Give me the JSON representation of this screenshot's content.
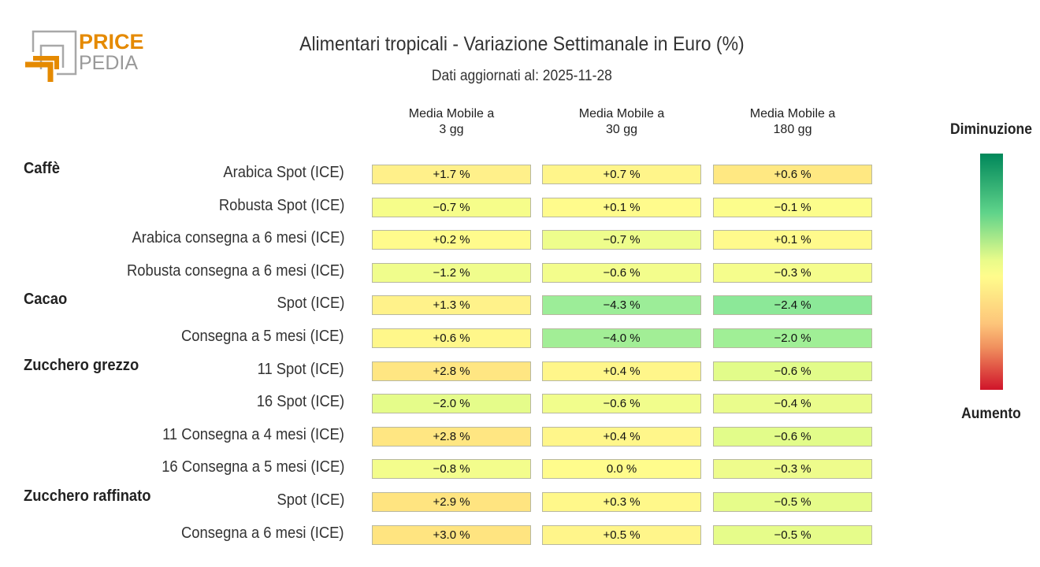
{
  "logo": {
    "line1": "PRICE",
    "line2": "PEDIA"
  },
  "chart_data": {
    "type": "table",
    "title": "Alimentari tropicali - Variazione Settimanale in Euro (%)",
    "subtitle": "Dati aggiornati al: 2025-11-28",
    "columns": [
      "Media Mobile a\n3 gg",
      "Media Mobile a\n30 gg",
      "Media Mobile a\n180 gg"
    ],
    "legend": {
      "top": "Diminuzione",
      "bottom": "Aumento"
    },
    "groups": [
      {
        "name": "Caffè",
        "row": 0
      },
      {
        "name": "Cacao",
        "row": 4
      },
      {
        "name": "Zucchero grezzo",
        "row": 6
      },
      {
        "name": "Zucchero raffinato",
        "row": 10
      }
    ],
    "rows": [
      {
        "label": "Arabica Spot (ICE)",
        "values": [
          "+1.7 %",
          "+0.7 %",
          "+0.6 %"
        ],
        "colors": [
          "#fff08a",
          "#fff58a",
          "#ffe882"
        ]
      },
      {
        "label": "Robusta Spot (ICE)",
        "values": [
          "−0.7 %",
          "+0.1 %",
          "−0.1 %"
        ],
        "colors": [
          "#f6fd8a",
          "#fffb8c",
          "#fcfd8c"
        ]
      },
      {
        "label": "Arabica consegna a 6 mesi (ICE)",
        "values": [
          "+0.2 %",
          "−0.7 %",
          "+0.1 %"
        ],
        "colors": [
          "#fffb8c",
          "#eefd8c",
          "#fffa8c"
        ]
      },
      {
        "label": "Robusta consegna a 6 mesi (ICE)",
        "values": [
          "−1.2 %",
          "−0.6 %",
          "−0.3 %"
        ],
        "colors": [
          "#f0fd8c",
          "#f3fd8c",
          "#f5fd8c"
        ]
      },
      {
        "label": "Spot (ICE)",
        "values": [
          "+1.3 %",
          "−4.3 %",
          "−2.4 %"
        ],
        "colors": [
          "#fff28a",
          "#9ced98",
          "#8ce898"
        ]
      },
      {
        "label": "Consegna a 5 mesi (ICE)",
        "values": [
          "+0.6 %",
          "−4.0 %",
          "−2.0 %"
        ],
        "colors": [
          "#fff78a",
          "#a2ee96",
          "#a0ef96"
        ]
      },
      {
        "label": "11 Spot (ICE)",
        "values": [
          "+2.8 %",
          "+0.4 %",
          "−0.6 %"
        ],
        "colors": [
          "#ffe682",
          "#fff68a",
          "#e2fc8a"
        ]
      },
      {
        "label": "16 Spot (ICE)",
        "values": [
          "−2.0 %",
          "−0.6 %",
          "−0.4 %"
        ],
        "colors": [
          "#e5fc8a",
          "#f1fd8c",
          "#eafc8c"
        ]
      },
      {
        "label": "11 Consegna a 4 mesi (ICE)",
        "values": [
          "+2.8 %",
          "+0.4 %",
          "−0.6 %"
        ],
        "colors": [
          "#ffe682",
          "#fff68a",
          "#e2fc8a"
        ]
      },
      {
        "label": "16 Consegna a 5 mesi (ICE)",
        "values": [
          "−0.8 %",
          "0.0 %",
          "−0.3 %"
        ],
        "colors": [
          "#f3fd8c",
          "#fffc8c",
          "#eefc8c"
        ]
      },
      {
        "label": "Spot (ICE)",
        "values": [
          "+2.9 %",
          "+0.3 %",
          "−0.5 %"
        ],
        "colors": [
          "#ffe480",
          "#fff88a",
          "#e6fc8a"
        ]
      },
      {
        "label": "Consegna a 6 mesi (ICE)",
        "values": [
          "+3.0 %",
          "+0.5 %",
          "−0.5 %"
        ],
        "colors": [
          "#ffe480",
          "#fff58a",
          "#e6fc8a"
        ]
      }
    ]
  }
}
